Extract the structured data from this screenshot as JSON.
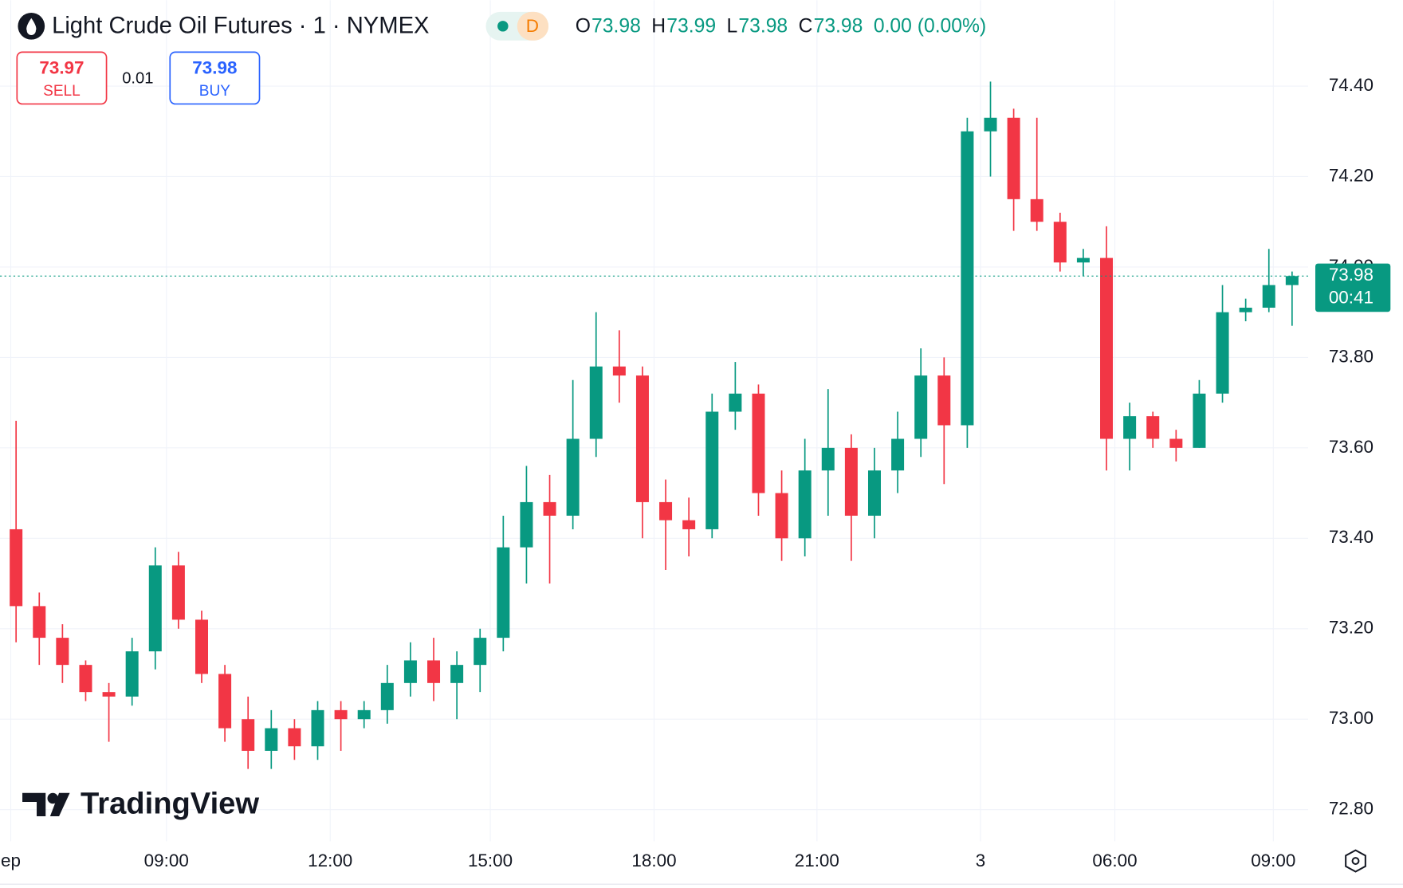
{
  "header": {
    "symbol": "Light Crude Oil Futures · 1 · NYMEX",
    "badge": "D",
    "ohlc": [
      {
        "key": "O",
        "value": "73.98"
      },
      {
        "key": "H",
        "value": "73.99"
      },
      {
        "key": "L",
        "value": "73.98"
      },
      {
        "key": "C",
        "value": "73.98"
      }
    ],
    "change": "0.00 (0.00%)"
  },
  "trade": {
    "sell_price": "73.97",
    "sell": "SELL",
    "spread": "0.01",
    "buy_price": "73.98",
    "buy": "BUY"
  },
  "logo": "TradingView",
  "chart_data": {
    "type": "candlestick",
    "up_color": "#089981",
    "down_color": "#f23645",
    "grid": true,
    "open": [
      73.42,
      73.25,
      73.18,
      73.12,
      73.06,
      73.05,
      73.15,
      73.34,
      73.22,
      73.1,
      73.0,
      72.93,
      72.98,
      72.94,
      73.02,
      73.0,
      73.02,
      73.08,
      73.13,
      73.08,
      73.12,
      73.18,
      73.38,
      73.48,
      73.45,
      73.62,
      73.78,
      73.76,
      73.48,
      73.44,
      73.42,
      73.68,
      73.72,
      73.5,
      73.4,
      73.55,
      73.6,
      73.45,
      73.55,
      73.62,
      73.76,
      73.65,
      74.3,
      74.33,
      74.15,
      74.1,
      74.01,
      74.02,
      73.62,
      73.67,
      73.62,
      73.6,
      73.72,
      73.9,
      73.91,
      73.96
    ],
    "high": [
      73.66,
      73.28,
      73.21,
      73.13,
      73.08,
      73.18,
      73.38,
      73.37,
      73.24,
      73.12,
      73.05,
      73.02,
      73.0,
      73.04,
      73.04,
      73.04,
      73.12,
      73.17,
      73.18,
      73.15,
      73.2,
      73.45,
      73.56,
      73.54,
      73.75,
      73.9,
      73.86,
      73.78,
      73.53,
      73.49,
      73.72,
      73.79,
      73.74,
      73.55,
      73.62,
      73.73,
      73.63,
      73.6,
      73.68,
      73.82,
      73.8,
      74.33,
      74.41,
      74.35,
      74.33,
      74.12,
      74.04,
      74.09,
      73.7,
      73.68,
      73.64,
      73.75,
      73.96,
      73.93,
      74.04,
      73.99
    ],
    "low": [
      73.17,
      73.12,
      73.08,
      73.04,
      72.95,
      73.03,
      73.11,
      73.2,
      73.08,
      72.95,
      72.89,
      72.89,
      72.91,
      72.91,
      72.93,
      72.98,
      72.99,
      73.05,
      73.04,
      73.0,
      73.06,
      73.15,
      73.3,
      73.3,
      73.42,
      73.58,
      73.7,
      73.4,
      73.33,
      73.36,
      73.4,
      73.64,
      73.45,
      73.35,
      73.36,
      73.45,
      73.35,
      73.4,
      73.5,
      73.58,
      73.52,
      73.6,
      74.2,
      74.08,
      74.08,
      73.99,
      73.98,
      73.55,
      73.55,
      73.6,
      73.57,
      73.6,
      73.7,
      73.88,
      73.9,
      73.87
    ],
    "close": [
      73.25,
      73.18,
      73.12,
      73.06,
      73.05,
      73.15,
      73.34,
      73.22,
      73.1,
      72.98,
      72.93,
      72.98,
      72.94,
      73.02,
      73.0,
      73.02,
      73.08,
      73.13,
      73.08,
      73.12,
      73.18,
      73.38,
      73.48,
      73.45,
      73.62,
      73.78,
      73.76,
      73.48,
      73.44,
      73.42,
      73.68,
      73.72,
      73.5,
      73.4,
      73.55,
      73.6,
      73.45,
      73.55,
      73.62,
      73.76,
      73.65,
      74.3,
      74.33,
      74.15,
      74.1,
      74.01,
      74.02,
      73.62,
      73.67,
      73.62,
      73.6,
      73.72,
      73.9,
      73.91,
      73.96,
      73.98
    ],
    "xlim": [
      0,
      56
    ],
    "xticks": [
      {
        "value": 0.27,
        "label": "ep"
      },
      {
        "value": 6.98,
        "label": "09:00"
      },
      {
        "value": 14.04,
        "label": "12:00"
      },
      {
        "value": 20.94,
        "label": "15:00"
      },
      {
        "value": 28.0,
        "label": "18:00"
      },
      {
        "value": 35.02,
        "label": "21:00"
      },
      {
        "value": 42.07,
        "label": "3"
      },
      {
        "value": 47.86,
        "label": "06:00"
      },
      {
        "value": 54.69,
        "label": "09:00"
      }
    ],
    "ylim": [
      72.73,
      74.59
    ],
    "yticks": [
      {
        "value": 72.8,
        "label": "72.80"
      },
      {
        "value": 73.0,
        "label": "73.00"
      },
      {
        "value": 73.2,
        "label": "73.20"
      },
      {
        "value": 73.4,
        "label": "73.40"
      },
      {
        "value": 73.6,
        "label": "73.60"
      },
      {
        "value": 73.8,
        "label": "73.80"
      },
      {
        "value": 74.0,
        "label": "74.00"
      },
      {
        "value": 74.2,
        "label": "74.20"
      },
      {
        "value": 74.4,
        "label": "74.40"
      }
    ],
    "last_price": 73.98,
    "countdown": "00:41"
  }
}
